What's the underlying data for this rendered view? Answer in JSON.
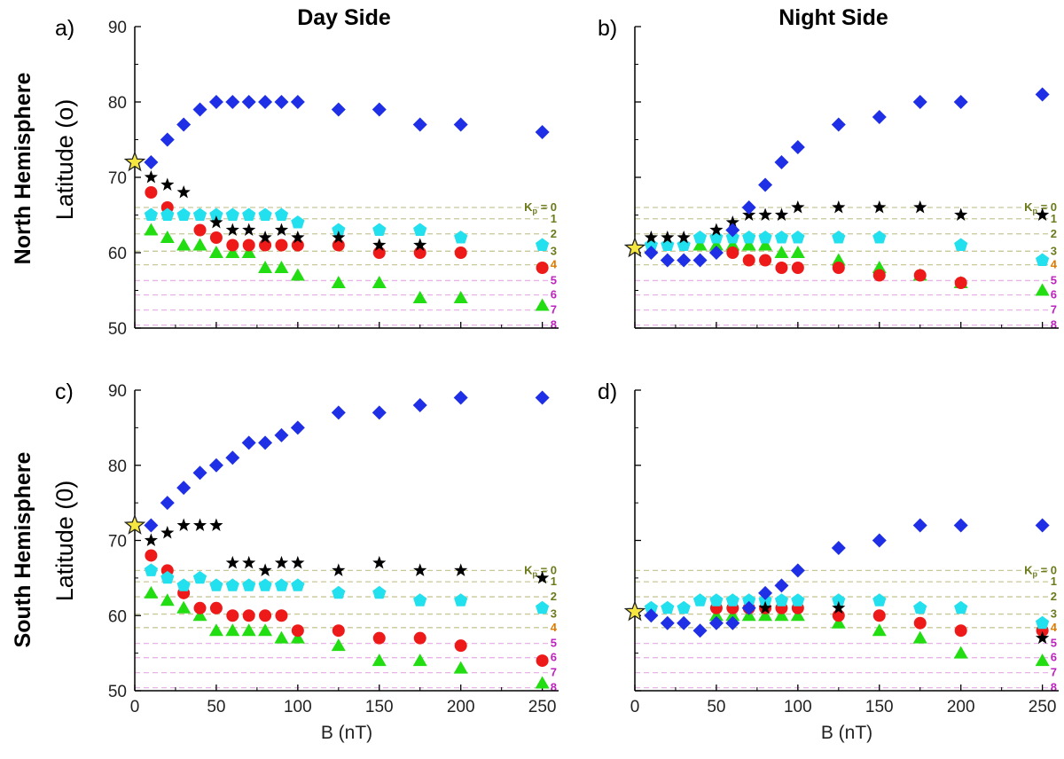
{
  "figure": {
    "row_labels": [
      "North Hemisphere",
      "South Hemisphere"
    ],
    "ylabel_north": "Latitude (o)",
    "ylabel_south": "Latitude (0)",
    "xlabel": "B (nT)",
    "kp_prefix": "K",
    "kp_sub": "p",
    "kp_equals": " = "
  },
  "colors": {
    "diamond": "#1f2fe6",
    "star": "#000000",
    "pentagon": "#22e0ee",
    "circle": "#ee1a1a",
    "triangle": "#22dd11",
    "ref_star": "#f5e642",
    "kp_0_3": "#6b7a1a",
    "kp_4": "#e07a00",
    "kp_5_8": "#c020c0",
    "kp_line_low": "#c8c89a",
    "kp_line_high": "#e8b4e8"
  },
  "chart_data": [
    {
      "panel": "a)",
      "title": "Day Side",
      "type": "scatter",
      "xlim": [
        0,
        260
      ],
      "ylim": [
        50,
        90
      ],
      "xticks": [
        0,
        50,
        100,
        150,
        200,
        250
      ],
      "yticks": [
        50,
        60,
        70,
        80,
        90
      ],
      "reference_point": {
        "x": 0,
        "y": 72
      },
      "kp_lines": [
        {
          "label": "0",
          "y": 66
        },
        {
          "label": "1",
          "y": 64.5
        },
        {
          "label": "2",
          "y": 62.5
        },
        {
          "label": "3",
          "y": 60.2
        },
        {
          "label": "4",
          "y": 58.4
        },
        {
          "label": "5",
          "y": 56.3
        },
        {
          "label": "6",
          "y": 54.4
        },
        {
          "label": "7",
          "y": 52.4
        },
        {
          "label": "8",
          "y": 50.4
        }
      ],
      "series": [
        {
          "name": "diamond",
          "x": [
            10,
            20,
            30,
            40,
            50,
            60,
            70,
            80,
            90,
            100,
            125,
            150,
            175,
            200,
            250
          ],
          "y": [
            72,
            75,
            77,
            79,
            80,
            80,
            80,
            80,
            80,
            80,
            79,
            79,
            77,
            77,
            76
          ]
        },
        {
          "name": "star",
          "x": [
            10,
            20,
            30,
            50,
            60,
            70,
            80,
            90,
            100,
            125,
            150,
            175
          ],
          "y": [
            70,
            69,
            68,
            64,
            63,
            63,
            62,
            63,
            62,
            62,
            61,
            61
          ]
        },
        {
          "name": "pentagon",
          "x": [
            10,
            20,
            30,
            40,
            50,
            60,
            70,
            80,
            90,
            100,
            125,
            150,
            175,
            200,
            250
          ],
          "y": [
            65,
            65,
            65,
            65,
            65,
            65,
            65,
            65,
            65,
            64,
            63,
            63,
            63,
            62,
            61
          ]
        },
        {
          "name": "circle",
          "x": [
            10,
            20,
            40,
            50,
            60,
            70,
            80,
            90,
            100,
            125,
            150,
            175,
            200,
            250
          ],
          "y": [
            68,
            66,
            63,
            62,
            61,
            61,
            61,
            61,
            61,
            61,
            60,
            60,
            60,
            58
          ]
        },
        {
          "name": "triangle",
          "x": [
            10,
            20,
            30,
            40,
            50,
            60,
            70,
            80,
            90,
            100,
            125,
            150,
            175,
            200,
            250
          ],
          "y": [
            63,
            62,
            61,
            61,
            60,
            60,
            60,
            58,
            58,
            57,
            56,
            56,
            54,
            54,
            53
          ]
        }
      ]
    },
    {
      "panel": "b)",
      "title": "Night Side",
      "type": "scatter",
      "xlim": [
        0,
        260
      ],
      "ylim": [
        50,
        90
      ],
      "xticks": [
        0,
        50,
        100,
        150,
        200,
        250
      ],
      "yticks": [
        50,
        60,
        70,
        80,
        90
      ],
      "reference_point": {
        "x": 0,
        "y": 60.6
      },
      "kp_lines": [
        {
          "label": "0",
          "y": 66
        },
        {
          "label": "1",
          "y": 64.5
        },
        {
          "label": "2",
          "y": 62.5
        },
        {
          "label": "3",
          "y": 60.2
        },
        {
          "label": "4",
          "y": 58.4
        },
        {
          "label": "5",
          "y": 56.3
        },
        {
          "label": "6",
          "y": 54.4
        },
        {
          "label": "7",
          "y": 52.4
        },
        {
          "label": "8",
          "y": 50.4
        }
      ],
      "series": [
        {
          "name": "diamond",
          "x": [
            10,
            20,
            30,
            40,
            50,
            60,
            70,
            80,
            90,
            100,
            125,
            150,
            175,
            200,
            250
          ],
          "y": [
            60,
            59,
            59,
            59,
            60,
            63,
            66,
            69,
            72,
            74,
            77,
            78,
            80,
            80,
            81
          ]
        },
        {
          "name": "star",
          "x": [
            10,
            20,
            30,
            50,
            60,
            70,
            80,
            90,
            100,
            125,
            150,
            175,
            200,
            250
          ],
          "y": [
            62,
            62,
            62,
            63,
            64,
            65,
            65,
            65,
            66,
            66,
            66,
            66,
            65,
            65
          ]
        },
        {
          "name": "pentagon",
          "x": [
            10,
            20,
            30,
            40,
            50,
            60,
            70,
            80,
            90,
            100,
            125,
            150,
            200,
            250
          ],
          "y": [
            61,
            61,
            61,
            62,
            62,
            62,
            62,
            62,
            62,
            62,
            62,
            62,
            61,
            59
          ]
        },
        {
          "name": "circle",
          "x": [
            60,
            70,
            80,
            90,
            100,
            125,
            150,
            175,
            200
          ],
          "y": [
            60,
            59,
            59,
            58,
            58,
            58,
            57,
            57,
            56
          ]
        },
        {
          "name": "triangle",
          "x": [
            40,
            50,
            60,
            70,
            80,
            90,
            100,
            125,
            150,
            175,
            200,
            250
          ],
          "y": [
            61,
            61,
            61,
            61,
            61,
            60,
            60,
            59,
            58,
            57,
            56,
            55
          ]
        }
      ]
    },
    {
      "panel": "c)",
      "title": "",
      "type": "scatter",
      "xlim": [
        0,
        260
      ],
      "ylim": [
        50,
        90
      ],
      "xticks": [
        0,
        50,
        100,
        150,
        200,
        250
      ],
      "yticks": [
        50,
        60,
        70,
        80,
        90
      ],
      "reference_point": {
        "x": 0,
        "y": 72
      },
      "kp_lines": [
        {
          "label": "0",
          "y": 66
        },
        {
          "label": "1",
          "y": 64.5
        },
        {
          "label": "2",
          "y": 62.5
        },
        {
          "label": "3",
          "y": 60.2
        },
        {
          "label": "4",
          "y": 58.4
        },
        {
          "label": "5",
          "y": 56.3
        },
        {
          "label": "6",
          "y": 54.4
        },
        {
          "label": "7",
          "y": 52.4
        },
        {
          "label": "8",
          "y": 50.4
        }
      ],
      "series": [
        {
          "name": "diamond",
          "x": [
            10,
            20,
            30,
            40,
            50,
            60,
            70,
            80,
            90,
            100,
            125,
            150,
            175,
            200,
            250
          ],
          "y": [
            72,
            75,
            77,
            79,
            80,
            81,
            83,
            83,
            84,
            85,
            87,
            87,
            88,
            89,
            89
          ]
        },
        {
          "name": "star",
          "x": [
            10,
            20,
            30,
            40,
            50,
            60,
            70,
            80,
            90,
            100,
            125,
            150,
            175,
            200,
            250
          ],
          "y": [
            70,
            71,
            72,
            72,
            72,
            67,
            67,
            66,
            67,
            67,
            66,
            67,
            66,
            66,
            65
          ]
        },
        {
          "name": "pentagon",
          "x": [
            10,
            20,
            30,
            40,
            50,
            60,
            70,
            80,
            90,
            100,
            125,
            150,
            175,
            200,
            250
          ],
          "y": [
            66,
            65,
            64,
            65,
            64,
            64,
            64,
            64,
            64,
            64,
            63,
            63,
            62,
            62,
            61
          ]
        },
        {
          "name": "circle",
          "x": [
            10,
            20,
            30,
            40,
            50,
            60,
            70,
            80,
            90,
            100,
            125,
            150,
            175,
            200,
            250
          ],
          "y": [
            68,
            66,
            63,
            61,
            61,
            60,
            60,
            60,
            60,
            58,
            58,
            57,
            57,
            56,
            54
          ]
        },
        {
          "name": "triangle",
          "x": [
            10,
            20,
            30,
            40,
            50,
            60,
            70,
            80,
            90,
            100,
            125,
            150,
            175,
            200,
            250
          ],
          "y": [
            63,
            62,
            61,
            60,
            58,
            58,
            58,
            58,
            57,
            57,
            56,
            54,
            54,
            53,
            51
          ]
        }
      ]
    },
    {
      "panel": "d)",
      "title": "",
      "type": "scatter",
      "xlim": [
        0,
        260
      ],
      "ylim": [
        50,
        90
      ],
      "xticks": [
        0,
        50,
        100,
        150,
        200,
        250
      ],
      "yticks": [
        50,
        60,
        70,
        80,
        90
      ],
      "reference_point": {
        "x": 0,
        "y": 60.5
      },
      "kp_lines": [
        {
          "label": "0",
          "y": 66
        },
        {
          "label": "1",
          "y": 64.5
        },
        {
          "label": "2",
          "y": 62.5
        },
        {
          "label": "3",
          "y": 60.2
        },
        {
          "label": "4",
          "y": 58.4
        },
        {
          "label": "5",
          "y": 56.3
        },
        {
          "label": "6",
          "y": 54.4
        },
        {
          "label": "7",
          "y": 52.4
        },
        {
          "label": "8",
          "y": 50.4
        }
      ],
      "series": [
        {
          "name": "diamond",
          "x": [
            10,
            20,
            30,
            40,
            50,
            60,
            70,
            80,
            90,
            100,
            125,
            150,
            175,
            200,
            250
          ],
          "y": [
            60,
            59,
            59,
            58,
            59,
            59,
            61,
            63,
            64,
            66,
            69,
            70,
            72,
            72,
            72
          ]
        },
        {
          "name": "star",
          "x": [
            80,
            125,
            250
          ],
          "y": [
            61,
            61,
            57
          ]
        },
        {
          "name": "pentagon",
          "x": [
            10,
            20,
            30,
            40,
            50,
            60,
            70,
            80,
            90,
            100,
            125,
            150,
            175,
            200,
            250
          ],
          "y": [
            61,
            61,
            61,
            62,
            62,
            62,
            62,
            62,
            62,
            62,
            62,
            62,
            61,
            61,
            59
          ]
        },
        {
          "name": "circle",
          "x": [
            50,
            60,
            70,
            80,
            90,
            100,
            125,
            150,
            175,
            200,
            250
          ],
          "y": [
            61,
            61,
            61,
            61,
            61,
            61,
            60,
            60,
            59,
            58,
            58
          ]
        },
        {
          "name": "triangle",
          "x": [
            50,
            60,
            70,
            80,
            90,
            100,
            125,
            150,
            175,
            200,
            250
          ],
          "y": [
            60,
            60,
            60,
            60,
            60,
            60,
            59,
            58,
            57,
            55,
            54
          ]
        }
      ]
    }
  ]
}
